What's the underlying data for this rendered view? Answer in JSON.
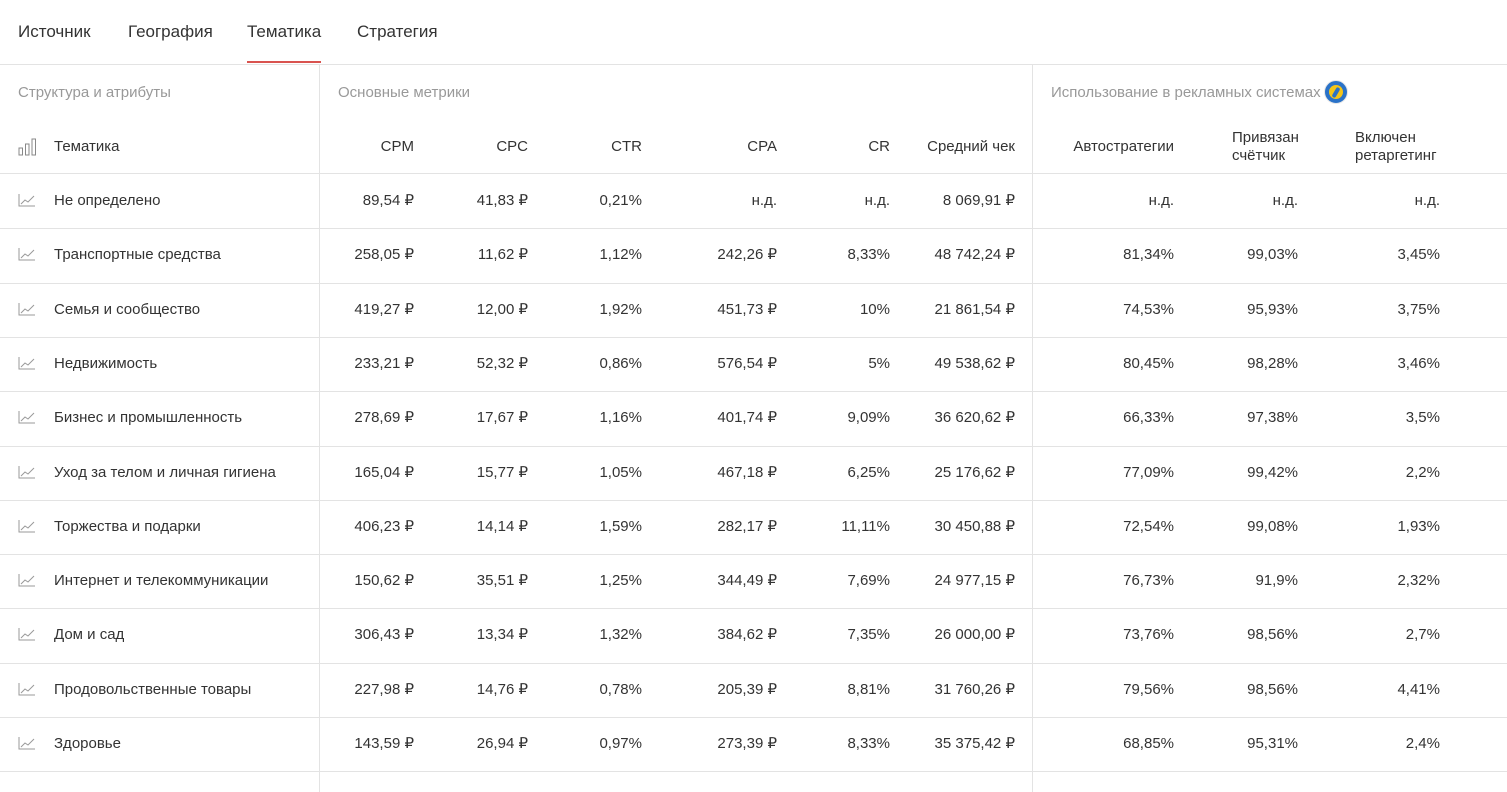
{
  "tabs": [
    "Источник",
    "География",
    "Тематика",
    "Стратегия"
  ],
  "active_tab": "Тематика",
  "groups": {
    "structure": "Структура и атрибуты",
    "metrics": "Основные метрики",
    "ads": "Использование в рекламных системах",
    "ads_icon": "yandex-metrica-icon"
  },
  "columns": {
    "topic": "Тематика",
    "cpm": "CPM",
    "cpc": "CPC",
    "ctr": "CTR",
    "cpa": "CPA",
    "cr": "CR",
    "avg_check": "Средний чек",
    "autostrategies": "Автостратегии",
    "counter_linked": [
      "Привязан",
      "счётчик"
    ],
    "retargeting_on": [
      "Включен",
      "ретаргетинг"
    ]
  },
  "icons": {
    "header": "bar-chart-icon",
    "row": "line-chart-icon"
  },
  "colors": {
    "accent": "#d9534f",
    "border": "#e3e3e3",
    "muted": "#999999",
    "text": "#333333"
  },
  "rows": [
    {
      "name": "Не определено",
      "cpm": "89,54 ₽",
      "cpc": "41,83 ₽",
      "ctr": "0,21%",
      "cpa": "н.д.",
      "cr": "н.д.",
      "avg_check": "8 069,91 ₽",
      "autostrategies": "н.д.",
      "counter": "н.д.",
      "retargeting": "н.д."
    },
    {
      "name": "Транспортные средства",
      "cpm": "258,05 ₽",
      "cpc": "11,62 ₽",
      "ctr": "1,12%",
      "cpa": "242,26 ₽",
      "cr": "8,33%",
      "avg_check": "48 742,24 ₽",
      "autostrategies": "81,34%",
      "counter": "99,03%",
      "retargeting": "3,45%"
    },
    {
      "name": "Семья и сообщество",
      "cpm": "419,27 ₽",
      "cpc": "12,00 ₽",
      "ctr": "1,92%",
      "cpa": "451,73 ₽",
      "cr": "10%",
      "avg_check": "21 861,54 ₽",
      "autostrategies": "74,53%",
      "counter": "95,93%",
      "retargeting": "3,75%"
    },
    {
      "name": "Недвижимость",
      "cpm": "233,21 ₽",
      "cpc": "52,32 ₽",
      "ctr": "0,86%",
      "cpa": "576,54 ₽",
      "cr": "5%",
      "avg_check": "49 538,62 ₽",
      "autostrategies": "80,45%",
      "counter": "98,28%",
      "retargeting": "3,46%"
    },
    {
      "name": "Бизнес и промышленность",
      "cpm": "278,69 ₽",
      "cpc": "17,67 ₽",
      "ctr": "1,16%",
      "cpa": "401,74 ₽",
      "cr": "9,09%",
      "avg_check": "36 620,62 ₽",
      "autostrategies": "66,33%",
      "counter": "97,38%",
      "retargeting": "3,5%"
    },
    {
      "name": "Уход за телом и личная гигиена",
      "cpm": "165,04 ₽",
      "cpc": "15,77 ₽",
      "ctr": "1,05%",
      "cpa": "467,18 ₽",
      "cr": "6,25%",
      "avg_check": "25 176,62 ₽",
      "autostrategies": "77,09%",
      "counter": "99,42%",
      "retargeting": "2,2%"
    },
    {
      "name": "Торжества и подарки",
      "cpm": "406,23 ₽",
      "cpc": "14,14 ₽",
      "ctr": "1,59%",
      "cpa": "282,17 ₽",
      "cr": "11,11%",
      "avg_check": "30 450,88 ₽",
      "autostrategies": "72,54%",
      "counter": "99,08%",
      "retargeting": "1,93%"
    },
    {
      "name": "Интернет и телекоммуникации",
      "cpm": "150,62 ₽",
      "cpc": "35,51 ₽",
      "ctr": "1,25%",
      "cpa": "344,49 ₽",
      "cr": "7,69%",
      "avg_check": "24 977,15 ₽",
      "autostrategies": "76,73%",
      "counter": "91,9%",
      "retargeting": "2,32%"
    },
    {
      "name": "Дом и сад",
      "cpm": "306,43 ₽",
      "cpc": "13,34 ₽",
      "ctr": "1,32%",
      "cpa": "384,62 ₽",
      "cr": "7,35%",
      "avg_check": "26 000,00 ₽",
      "autostrategies": "73,76%",
      "counter": "98,56%",
      "retargeting": "2,7%"
    },
    {
      "name": "Продовольственные товары",
      "cpm": "227,98 ₽",
      "cpc": "14,76 ₽",
      "ctr": "0,78%",
      "cpa": "205,39 ₽",
      "cr": "8,81%",
      "avg_check": "31 760,26 ₽",
      "autostrategies": "79,56%",
      "counter": "98,56%",
      "retargeting": "4,41%"
    },
    {
      "name": "Здоровье",
      "cpm": "143,59 ₽",
      "cpc": "26,94 ₽",
      "ctr": "0,97%",
      "cpa": "273,39 ₽",
      "cr": "8,33%",
      "avg_check": "35 375,42 ₽",
      "autostrategies": "68,85%",
      "counter": "95,31%",
      "retargeting": "2,4%"
    }
  ]
}
